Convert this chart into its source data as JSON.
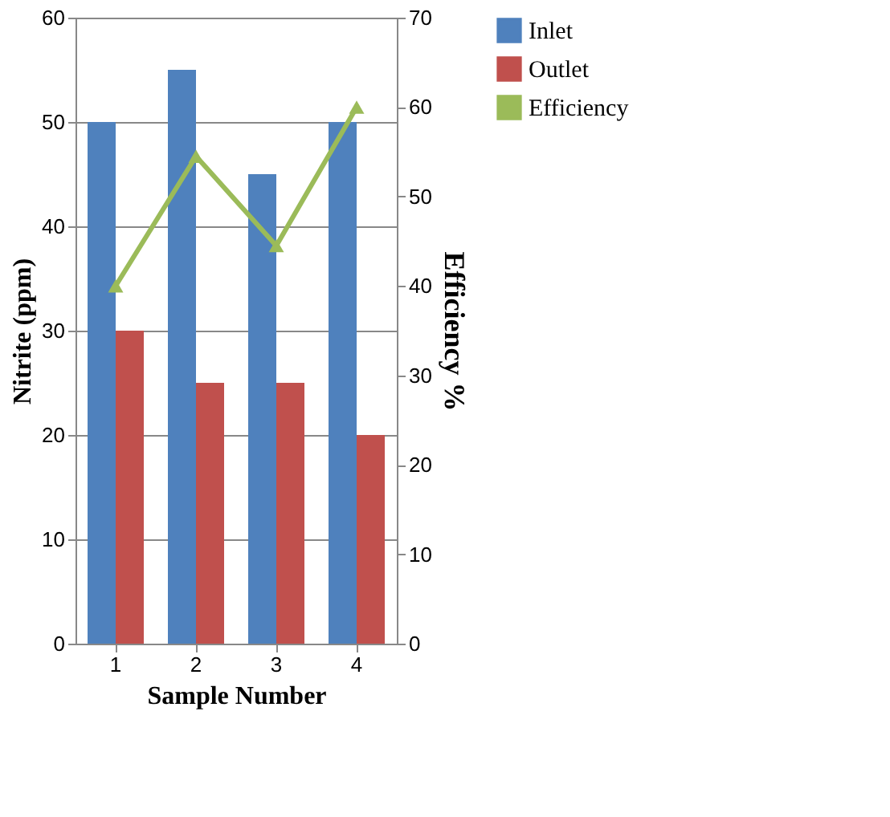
{
  "chart_data": {
    "type": "bar",
    "xlabel": "Sample Number",
    "ylabel": "Nitrite (ppm)",
    "y2label": "Efficiency %",
    "categories": [
      "1",
      "2",
      "3",
      "4"
    ],
    "series": [
      {
        "name": "Inlet",
        "color": "#4f81bd",
        "values": [
          50,
          55,
          45,
          50
        ]
      },
      {
        "name": "Outlet",
        "color": "#c0504d",
        "values": [
          30,
          25,
          25,
          20
        ]
      },
      {
        "name": "Efficiency",
        "type": "line",
        "axis": "y2",
        "color": "#9bbb59",
        "marker": "triangle",
        "values": [
          40,
          54.5,
          44.5,
          60
        ]
      }
    ],
    "ylim": [
      0,
      60
    ],
    "yticks": [
      0,
      10,
      20,
      30,
      40,
      50,
      60
    ],
    "y2lim": [
      0,
      70
    ],
    "y2ticks": [
      0,
      10,
      20,
      30,
      40,
      50,
      60,
      70
    ],
    "grid": "y",
    "legend": "right"
  }
}
